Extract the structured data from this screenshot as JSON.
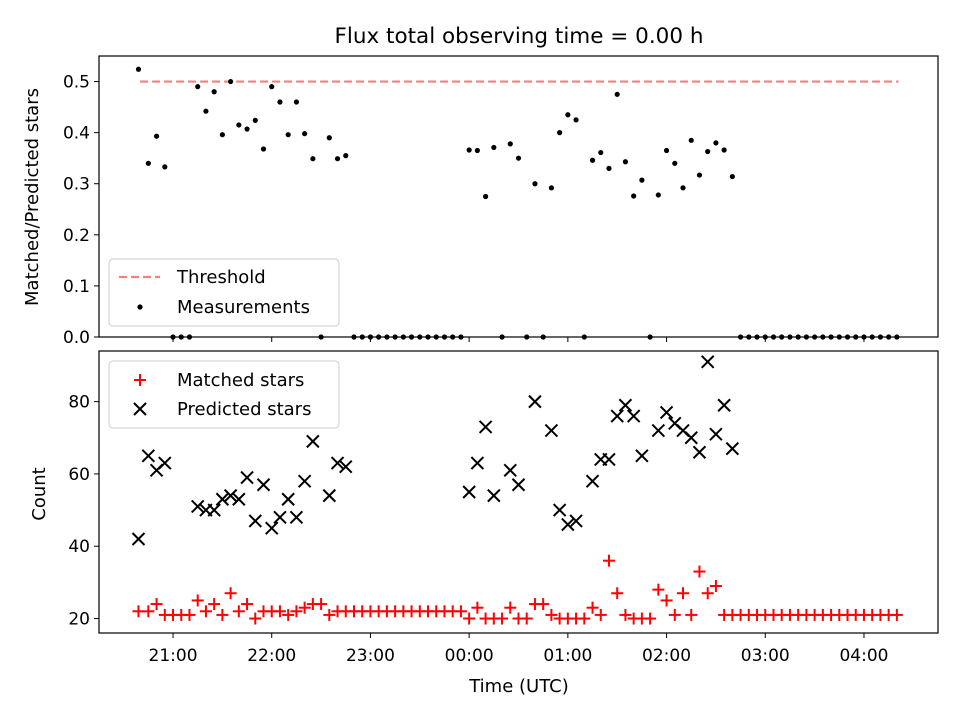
{
  "title": "Flux total observing time = 0.00 h",
  "colors": {
    "threshold": "#f47f7f",
    "matched": "#ff0000",
    "predicted": "#000000",
    "measurements": "#000000"
  },
  "chart_data": [
    {
      "type": "scatter",
      "xlabel": "",
      "ylabel": "Matched/Predicted stars",
      "ylim": [
        0,
        0.55
      ],
      "yticks": [
        0.0,
        0.1,
        0.2,
        0.3,
        0.4,
        0.5
      ],
      "ytick_labels": [
        "0.0",
        "0.1",
        "0.2",
        "0.3",
        "0.4",
        "0.5"
      ],
      "legend": [
        "Threshold",
        "Measurements"
      ],
      "legend_loc": "lower-left",
      "threshold": {
        "name": "Threshold",
        "value": 0.5,
        "x_range": [
          "20:40",
          "04:21"
        ]
      },
      "series": [
        {
          "name": "Measurements",
          "x": [
            "20:39",
            "20:45",
            "20:50",
            "20:55",
            "21:00",
            "21:05",
            "21:10",
            "21:15",
            "21:20",
            "21:25",
            "21:30",
            "21:35",
            "21:40",
            "21:45",
            "21:50",
            "21:55",
            "22:00",
            "22:05",
            "22:10",
            "22:15",
            "22:20",
            "22:25",
            "22:30",
            "22:35",
            "22:40",
            "22:45",
            "22:50",
            "22:55",
            "23:00",
            "23:05",
            "23:10",
            "23:15",
            "23:20",
            "23:25",
            "23:30",
            "23:35",
            "23:40",
            "23:45",
            "23:50",
            "23:55",
            "00:00",
            "00:05",
            "00:10",
            "00:15",
            "00:20",
            "00:25",
            "00:30",
            "00:35",
            "00:40",
            "00:45",
            "00:50",
            "00:55",
            "01:00",
            "01:05",
            "01:10",
            "01:15",
            "01:20",
            "01:25",
            "01:30",
            "01:35",
            "01:40",
            "01:45",
            "01:50",
            "01:55",
            "02:00",
            "02:05",
            "02:10",
            "02:15",
            "02:20",
            "02:25",
            "02:30",
            "02:35",
            "02:40",
            "02:45",
            "02:50",
            "02:55",
            "03:00",
            "03:05",
            "03:10",
            "03:15",
            "03:20",
            "03:25",
            "03:30",
            "03:35",
            "03:40",
            "03:45",
            "03:50",
            "03:55",
            "04:00",
            "04:05",
            "04:10",
            "04:15",
            "04:20"
          ],
          "y": [
            0.524,
            0.34,
            0.393,
            0.333,
            0,
            0,
            0,
            0.49,
            0.442,
            0.48,
            0.396,
            0.5,
            0.415,
            0.407,
            0.424,
            0.368,
            0.49,
            0.46,
            0.396,
            0.46,
            0.398,
            0.349,
            0,
            0.39,
            0.349,
            0.355,
            0,
            0,
            0,
            0,
            0,
            0,
            0,
            0,
            0,
            0,
            0,
            0,
            0,
            0,
            0.366,
            0.365,
            0.275,
            0.371,
            0,
            0.378,
            0.35,
            0,
            0.3,
            0,
            0.292,
            0.4,
            0.435,
            0.425,
            0,
            0.346,
            0.361,
            0.33,
            0.475,
            0.343,
            0.276,
            0.307,
            0,
            0.278,
            0.365,
            0.34,
            0.292,
            0.385,
            0.317,
            0.363,
            0.38,
            0.366,
            0.314,
            0,
            0,
            0,
            0,
            0,
            0,
            0,
            0,
            0,
            0,
            0,
            0,
            0,
            0,
            0,
            0,
            0,
            0,
            0,
            0
          ]
        }
      ]
    },
    {
      "type": "scatter",
      "xlabel": "Time (UTC)",
      "ylabel": "Count",
      "ylim": [
        16,
        94
      ],
      "yticks": [
        20,
        40,
        60,
        80
      ],
      "ytick_labels": [
        "20",
        "40",
        "60",
        "80"
      ],
      "xticks": [
        "21:00",
        "22:00",
        "23:00",
        "00:00",
        "01:00",
        "02:00",
        "03:00",
        "04:00"
      ],
      "xlim": [
        "20:15",
        "04:45"
      ],
      "legend": [
        "Matched stars",
        "Predicted stars"
      ],
      "legend_loc": "upper-left",
      "series": [
        {
          "name": "Matched stars",
          "x": [
            "20:39",
            "20:45",
            "20:50",
            "20:55",
            "21:00",
            "21:05",
            "21:10",
            "21:15",
            "21:20",
            "21:25",
            "21:30",
            "21:35",
            "21:40",
            "21:45",
            "21:50",
            "21:55",
            "22:00",
            "22:05",
            "22:10",
            "22:15",
            "22:20",
            "22:25",
            "22:30",
            "22:35",
            "22:40",
            "22:45",
            "22:50",
            "22:55",
            "23:00",
            "23:05",
            "23:10",
            "23:15",
            "23:20",
            "23:25",
            "23:30",
            "23:35",
            "23:40",
            "23:45",
            "23:50",
            "23:55",
            "00:00",
            "00:05",
            "00:10",
            "00:15",
            "00:20",
            "00:25",
            "00:30",
            "00:35",
            "00:40",
            "00:45",
            "00:50",
            "00:55",
            "01:00",
            "01:05",
            "01:10",
            "01:15",
            "01:20",
            "01:25",
            "01:30",
            "01:35",
            "01:40",
            "01:45",
            "01:50",
            "01:55",
            "02:00",
            "02:05",
            "02:10",
            "02:15",
            "02:20",
            "02:25",
            "02:30",
            "02:35",
            "02:40",
            "02:45",
            "02:50",
            "02:55",
            "03:00",
            "03:05",
            "03:10",
            "03:15",
            "03:20",
            "03:25",
            "03:30",
            "03:35",
            "03:40",
            "03:45",
            "03:50",
            "03:55",
            "04:00",
            "04:05",
            "04:10",
            "04:15",
            "04:20"
          ],
          "y": [
            22,
            22,
            24,
            21,
            21,
            21,
            21,
            25,
            22,
            24,
            21,
            27,
            22,
            24,
            20,
            22,
            22,
            22,
            21,
            22,
            23,
            24,
            24,
            21,
            22,
            22,
            22,
            22,
            22,
            22,
            22,
            22,
            22,
            22,
            22,
            22,
            22,
            22,
            22,
            22,
            20,
            23,
            20,
            20,
            20,
            23,
            20,
            20,
            24,
            24,
            21,
            20,
            20,
            20,
            20,
            23,
            21,
            36,
            27,
            21,
            20,
            20,
            20,
            28,
            25,
            21,
            27,
            21,
            33,
            27,
            29,
            21,
            21,
            21,
            21,
            21,
            21,
            21,
            21,
            21,
            21,
            21,
            21,
            21,
            21,
            21,
            21,
            21,
            21,
            21,
            21,
            21,
            21
          ]
        },
        {
          "name": "Predicted stars",
          "x": [
            "20:39",
            "20:45",
            "20:50",
            "20:55",
            "21:15",
            "21:20",
            "21:25",
            "21:30",
            "21:35",
            "21:40",
            "21:45",
            "21:50",
            "21:55",
            "22:00",
            "22:05",
            "22:10",
            "22:15",
            "22:20",
            "22:25",
            "22:35",
            "22:40",
            "22:45",
            "00:00",
            "00:05",
            "00:10",
            "00:15",
            "00:25",
            "00:30",
            "00:40",
            "00:50",
            "00:55",
            "01:00",
            "01:05",
            "01:15",
            "01:20",
            "01:25",
            "01:30",
            "01:35",
            "01:40",
            "01:45",
            "01:55",
            "02:00",
            "02:05",
            "02:10",
            "02:15",
            "02:20",
            "02:25",
            "02:30",
            "02:35",
            "02:40"
          ],
          "y": [
            42,
            65,
            61,
            63,
            51,
            50,
            50,
            53,
            54,
            53,
            59,
            47,
            57,
            45,
            48,
            53,
            48,
            58,
            69,
            54,
            63,
            62,
            55,
            63,
            73,
            54,
            61,
            57,
            80,
            72,
            50,
            46,
            47,
            58,
            64,
            64,
            76,
            79,
            76,
            65,
            72,
            77,
            74,
            72,
            70,
            66,
            91,
            71,
            79,
            67
          ]
        }
      ]
    }
  ]
}
